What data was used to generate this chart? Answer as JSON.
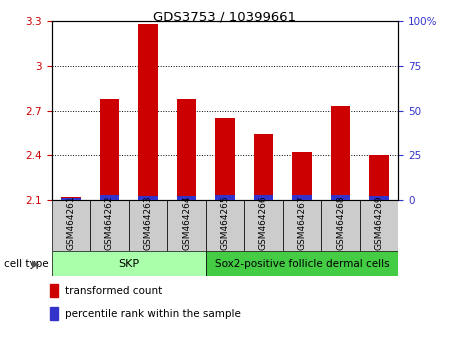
{
  "title": "GDS3753 / 10399661",
  "samples": [
    "GSM464261",
    "GSM464262",
    "GSM464263",
    "GSM464264",
    "GSM464265",
    "GSM464266",
    "GSM464267",
    "GSM464268",
    "GSM464269"
  ],
  "transformed_count": [
    2.12,
    2.78,
    3.28,
    2.78,
    2.65,
    2.54,
    2.42,
    2.73,
    2.4
  ],
  "percentile_rank": [
    1,
    3,
    2,
    2,
    3,
    3,
    3,
    3,
    2
  ],
  "ylim_left": [
    2.1,
    3.3
  ],
  "ylim_right": [
    0,
    100
  ],
  "yticks_left": [
    2.1,
    2.4,
    2.7,
    3.0,
    3.3
  ],
  "yticks_right": [
    0,
    25,
    50,
    75,
    100
  ],
  "ytick_labels_left": [
    "2.1",
    "2.4",
    "2.7",
    "3",
    "3.3"
  ],
  "ytick_labels_right": [
    "0",
    "25",
    "50",
    "75",
    "100%"
  ],
  "bar_color_red": "#cc0000",
  "bar_color_blue": "#3333cc",
  "bar_width": 0.5,
  "skp_color": "#aaffaa",
  "sox_color": "#44cc44",
  "legend_red": "transformed count",
  "legend_blue": "percentile rank within the sample",
  "cell_type_label": "cell type",
  "skp_label": "SKP",
  "sox_label": "Sox2-positive follicle dermal cells",
  "skp_count": 4,
  "sox_count": 5
}
